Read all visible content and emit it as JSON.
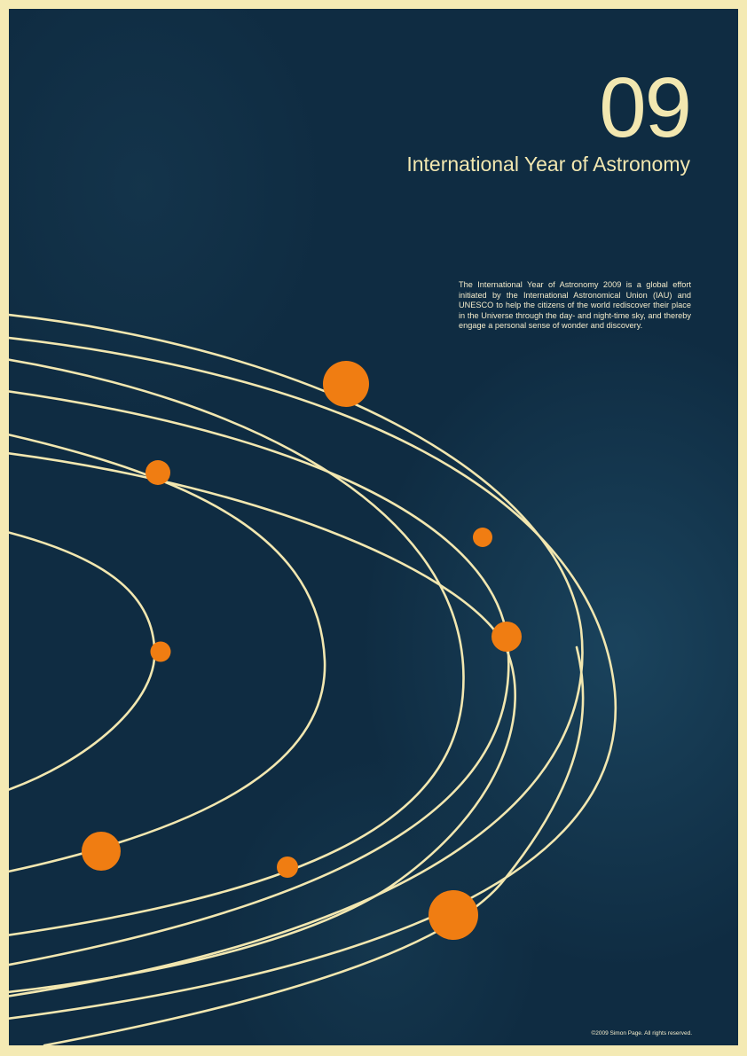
{
  "poster": {
    "year": "09",
    "title": "International Year of Astronomy",
    "description": "The International Year of Astronomy 2009 is a global effort initiated by the International Astronomical Union (IAU) and UNESCO to help the citizens of the world rediscover their place in the Universe through the day- and night-time sky, and thereby engage a personal sense of wonder and discovery.",
    "copyright": "©2009 Simon Page. All rights reserved."
  },
  "colors": {
    "frame": "#f4eab4",
    "background": "#0f2c42",
    "orbit_line": "#f2e7b0",
    "planet": "#f07d12",
    "text": "#f2e7b0"
  },
  "artwork": {
    "orbit_count": 8,
    "planet_count": 8
  }
}
